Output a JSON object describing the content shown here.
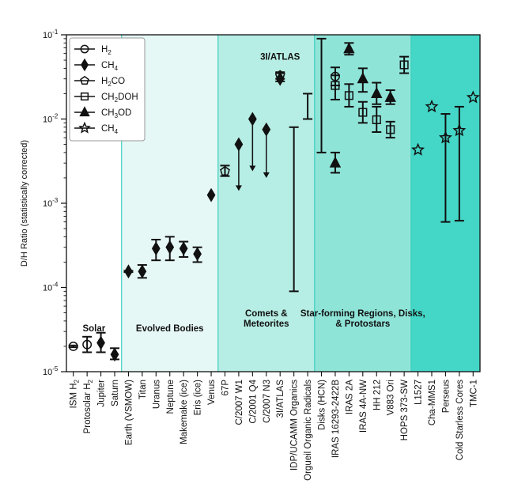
{
  "chart_data": {
    "type": "scatter",
    "yscale": "log",
    "ylim": [
      1e-05,
      0.1
    ],
    "ylabel": "D/H Ratio (statistically corrected)",
    "yticks": [
      {
        "value": 0.1,
        "base": "10",
        "exp": "-1"
      },
      {
        "value": 0.01,
        "base": "10",
        "exp": "-2"
      },
      {
        "value": 0.001,
        "base": "10",
        "exp": "-3"
      },
      {
        "value": 0.0001,
        "base": "10",
        "exp": "-4"
      },
      {
        "value": 1e-05,
        "base": "10",
        "exp": "-5"
      }
    ],
    "categories": [
      "ISM H2",
      "Protosolar H2",
      "Jupiter",
      "Saturn",
      "Earth (VSMOW)",
      "Titan",
      "Uranus",
      "Neptune",
      "Makemake (ice)",
      "Eris (ice)",
      "Venus",
      "67P",
      "C/2007 W1",
      "C/2001 Q4",
      "C/2007 N3",
      "3I/ATLAS",
      "IDP/UCAMM Organics",
      "Orgueil Organic Radicals",
      "Disks (HCN)",
      "IRAS 16293-2422B",
      "IRAS 2A",
      "IRAS 4A-NW",
      "HH 212",
      "V883 Ori",
      "HOPS 373-SW",
      "L1527",
      "Cha-MMS1",
      "Perseus",
      "Cold Starless Cores",
      "TMC-1"
    ],
    "category_labels": [
      {
        "text": "ISM H",
        "sub": "2"
      },
      {
        "text": "Protosolar H",
        "sub": "2"
      },
      {
        "text": "Jupiter",
        "sub": ""
      },
      {
        "text": "Saturn",
        "sub": ""
      },
      {
        "text": "Earth (VSMOW)",
        "sub": ""
      },
      {
        "text": "Titan",
        "sub": ""
      },
      {
        "text": "Uranus",
        "sub": ""
      },
      {
        "text": "Neptune",
        "sub": ""
      },
      {
        "text": "Makemake (ice)",
        "sub": ""
      },
      {
        "text": "Eris (ice)",
        "sub": ""
      },
      {
        "text": "Venus",
        "sub": ""
      },
      {
        "text": "67P",
        "sub": ""
      },
      {
        "text": "C/2007 W1",
        "sub": ""
      },
      {
        "text": "C/2001 Q4",
        "sub": ""
      },
      {
        "text": "C/2007 N3",
        "sub": ""
      },
      {
        "text": "3I/ATLAS",
        "sub": ""
      },
      {
        "text": "IDP/UCAMM Organics",
        "sub": ""
      },
      {
        "text": "Orgueil Organic Radicals",
        "sub": ""
      },
      {
        "text": "Disks (HCN)",
        "sub": ""
      },
      {
        "text": "IRAS 16293-2422B",
        "sub": ""
      },
      {
        "text": "IRAS 2A",
        "sub": ""
      },
      {
        "text": "IRAS 4A-NW",
        "sub": ""
      },
      {
        "text": "HH 212",
        "sub": ""
      },
      {
        "text": "V883 Ori",
        "sub": ""
      },
      {
        "text": "HOPS 373-SW",
        "sub": ""
      },
      {
        "text": "L1527",
        "sub": ""
      },
      {
        "text": "Cha-MMS1",
        "sub": ""
      },
      {
        "text": "Perseus",
        "sub": ""
      },
      {
        "text": "Cold Starless Cores",
        "sub": ""
      },
      {
        "text": "TMC-1",
        "sub": ""
      }
    ],
    "regions": [
      {
        "label_lines": [
          "Solar"
        ],
        "start": 0,
        "end": 4,
        "color": "#ffffff",
        "label_value": 3e-05
      },
      {
        "label_lines": [
          "Evolved Bodies"
        ],
        "start": 4,
        "end": 11,
        "color": "#e6f8f6",
        "label_value": 3e-05
      },
      {
        "label_lines": [
          "Comets &",
          "Meteorites"
        ],
        "start": 11,
        "end": 18,
        "color": "#b6ede4",
        "label_value": 4e-05
      },
      {
        "label_lines": [
          "Star-forming Regions, Disks,",
          "& Protostars"
        ],
        "start": 18,
        "end": 25,
        "color": "#8fe4d8",
        "label_value": 4e-05
      },
      {
        "label_lines": [],
        "start": 25,
        "end": 30,
        "color": "#44d6c6",
        "label_value": null
      }
    ],
    "legend": [
      {
        "marker": "circle",
        "text": "H",
        "sub": "2",
        "suffix": ""
      },
      {
        "marker": "diamond",
        "text": "CH",
        "sub": "4",
        "suffix": ""
      },
      {
        "marker": "pentagon",
        "text": "H",
        "sub": "2",
        "suffix": "CO"
      },
      {
        "marker": "square",
        "text": "CH",
        "sub": "2",
        "suffix": "DOH"
      },
      {
        "marker": "triangle",
        "text": "CH",
        "sub": "3",
        "suffix": "OD"
      },
      {
        "marker": "star",
        "text": "CH",
        "sub": "4",
        "suffix": ""
      }
    ],
    "annotation": {
      "text": "3I/ATLAS",
      "category": 15,
      "value": 0.06
    },
    "points": [
      {
        "cat": 0,
        "marker": "circle",
        "y": 2e-05,
        "lo": 1.95e-05,
        "hi": 2.05e-05
      },
      {
        "cat": 1,
        "marker": "circle",
        "y": 2.1e-05,
        "lo": 1.7e-05,
        "hi": 2.6e-05
      },
      {
        "cat": 2,
        "marker": "diamond",
        "y": 2.2e-05,
        "lo": 1.7e-05,
        "hi": 2.9e-05
      },
      {
        "cat": 3,
        "marker": "diamond",
        "y": 1.6e-05,
        "lo": 1.4e-05,
        "hi": 1.9e-05
      },
      {
        "cat": 4,
        "marker": "diamond",
        "y": 0.000155,
        "lo": 0.000152,
        "hi": 0.000158
      },
      {
        "cat": 5,
        "marker": "diamond",
        "y": 0.000155,
        "lo": 0.00013,
        "hi": 0.000185
      },
      {
        "cat": 6,
        "marker": "diamond",
        "y": 0.00029,
        "lo": 0.00021,
        "hi": 0.00037
      },
      {
        "cat": 7,
        "marker": "diamond",
        "y": 0.0003,
        "lo": 0.00021,
        "hi": 0.0004
      },
      {
        "cat": 8,
        "marker": "diamond",
        "y": 0.00029,
        "lo": 0.00023,
        "hi": 0.00035
      },
      {
        "cat": 9,
        "marker": "diamond",
        "y": 0.00025,
        "lo": 0.0002,
        "hi": 0.0003
      },
      {
        "cat": 10,
        "marker": "diamond",
        "y": 0.00125,
        "lo": 0.00125,
        "hi": 0.00125
      },
      {
        "cat": 11,
        "marker": "pentagon",
        "y": 0.0024,
        "lo": 0.0021,
        "hi": 0.0028
      },
      {
        "cat": 12,
        "marker": "diamond",
        "y": 0.005,
        "upper_limit_to": 0.0014
      },
      {
        "cat": 13,
        "marker": "diamond",
        "y": 0.01,
        "upper_limit_to": 0.0024
      },
      {
        "cat": 14,
        "marker": "diamond",
        "y": 0.0075,
        "upper_limit_to": 0.002
      },
      {
        "cat": 15,
        "marker": "diamond",
        "y": 0.03,
        "lo": 0.028,
        "hi": 0.035
      },
      {
        "cat": 15,
        "marker": "pentagon",
        "y": 0.033,
        "lo": 0.03,
        "hi": 0.036
      },
      {
        "cat": 16,
        "marker": "none",
        "y": null,
        "lo": 9e-05,
        "hi": 0.008
      },
      {
        "cat": 17,
        "marker": "none",
        "y": null,
        "lo": 0.01,
        "hi": 0.02
      },
      {
        "cat": 18,
        "marker": "none",
        "y": null,
        "lo": 0.004,
        "hi": 0.09
      },
      {
        "cat": 19,
        "marker": "circle",
        "y": 0.032,
        "lo": 0.025,
        "hi": 0.041
      },
      {
        "cat": 19,
        "marker": "square",
        "y": 0.025,
        "lo": 0.017,
        "hi": 0.033
      },
      {
        "cat": 19,
        "marker": "triangle",
        "y": 0.003,
        "lo": 0.0023,
        "hi": 0.004
      },
      {
        "cat": 20,
        "marker": "square",
        "y": 0.019,
        "lo": 0.014,
        "hi": 0.026
      },
      {
        "cat": 20,
        "marker": "triangle",
        "y": 0.068,
        "lo": 0.058,
        "hi": 0.08
      },
      {
        "cat": 21,
        "marker": "square",
        "y": 0.012,
        "lo": 0.009,
        "hi": 0.016
      },
      {
        "cat": 21,
        "marker": "triangle",
        "y": 0.03,
        "lo": 0.021,
        "hi": 0.04
      },
      {
        "cat": 22,
        "marker": "square",
        "y": 0.0098,
        "lo": 0.007,
        "hi": 0.014
      },
      {
        "cat": 22,
        "marker": "triangle",
        "y": 0.02,
        "lo": 0.015,
        "hi": 0.027
      },
      {
        "cat": 23,
        "marker": "square",
        "y": 0.0075,
        "lo": 0.006,
        "hi": 0.0093
      },
      {
        "cat": 23,
        "marker": "triangle",
        "y": 0.018,
        "lo": 0.015,
        "hi": 0.022
      },
      {
        "cat": 24,
        "marker": "square",
        "y": 0.044,
        "lo": 0.035,
        "hi": 0.055
      },
      {
        "cat": 25,
        "marker": "star",
        "y": 0.0043,
        "lo": 0.0043,
        "hi": 0.0043
      },
      {
        "cat": 26,
        "marker": "star",
        "y": 0.014,
        "lo": 0.014,
        "hi": 0.014
      },
      {
        "cat": 27,
        "marker": "star",
        "y": 0.006,
        "lo": 0.0006,
        "hi": 0.0115
      },
      {
        "cat": 28,
        "marker": "star",
        "y": 0.0073,
        "lo": 0.00062,
        "hi": 0.014
      },
      {
        "cat": 29,
        "marker": "star",
        "y": 0.018,
        "lo": 0.018,
        "hi": 0.018
      }
    ]
  }
}
